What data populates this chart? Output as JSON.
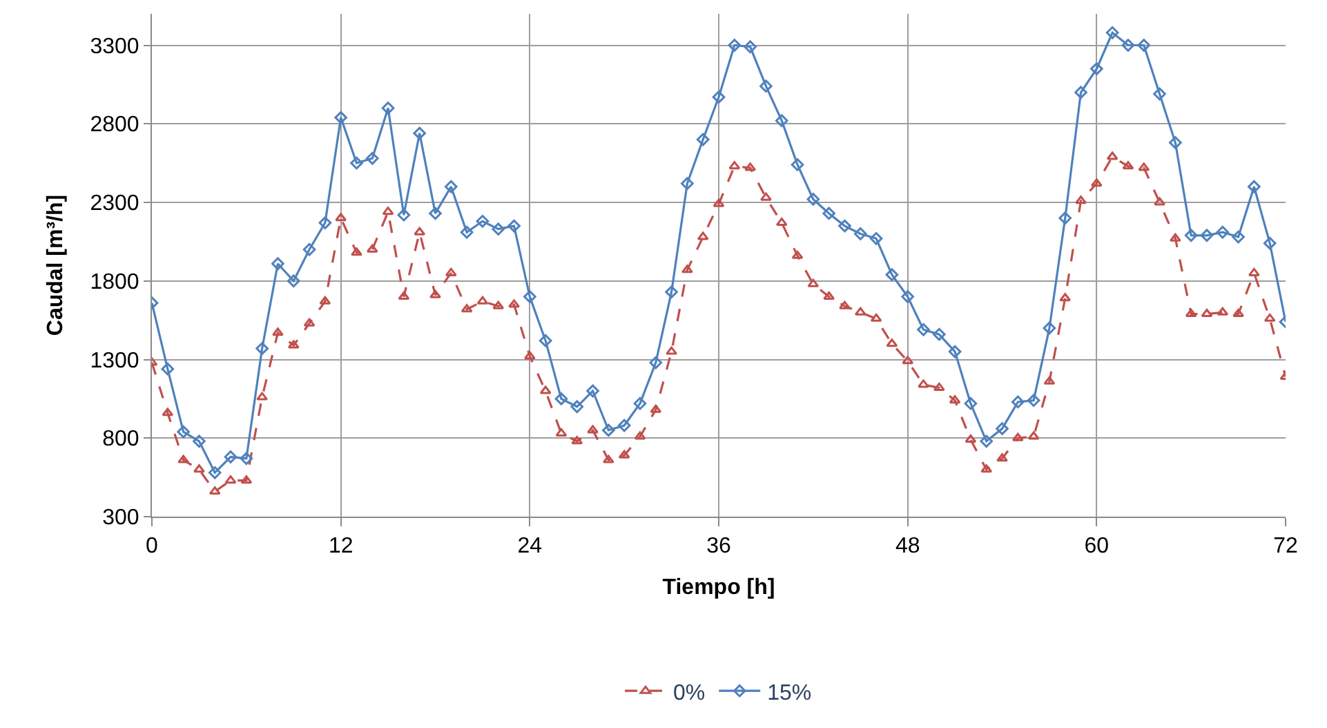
{
  "chart_data": {
    "type": "line",
    "xlabel": "Tiempo [h]",
    "ylabel": "Caudal [m³/h]",
    "x": [
      0,
      1,
      2,
      3,
      4,
      5,
      6,
      7,
      8,
      9,
      10,
      11,
      12,
      13,
      14,
      15,
      16,
      17,
      18,
      19,
      20,
      21,
      22,
      23,
      24,
      25,
      26,
      27,
      28,
      29,
      30,
      31,
      32,
      33,
      34,
      35,
      36,
      37,
      38,
      39,
      40,
      41,
      42,
      43,
      44,
      45,
      46,
      47,
      48,
      49,
      50,
      51,
      52,
      53,
      54,
      55,
      56,
      57,
      58,
      59,
      60,
      61,
      62,
      63,
      64,
      65,
      66,
      67,
      68,
      69,
      70,
      71,
      72
    ],
    "xlim": [
      0,
      72
    ],
    "xticks": [
      0,
      12,
      24,
      36,
      48,
      60,
      72
    ],
    "ylim": [
      300,
      3500
    ],
    "yticks": [
      300,
      800,
      1300,
      1800,
      2300,
      2800,
      3300
    ],
    "grid": true,
    "legend": "bottom",
    "series": [
      {
        "name": "0%",
        "color": "#c0504d",
        "marker": "triangle",
        "line_style": "dashed",
        "values": [
          1280,
          960,
          660,
          600,
          460,
          530,
          530,
          1060,
          1470,
          1390,
          1530,
          1670,
          2200,
          1980,
          2000,
          2240,
          1700,
          2110,
          1710,
          1850,
          1620,
          1670,
          1640,
          1650,
          1320,
          1100,
          830,
          780,
          850,
          660,
          690,
          810,
          980,
          1350,
          1870,
          2080,
          2290,
          2530,
          2520,
          2330,
          2170,
          1960,
          1780,
          1700,
          1640,
          1600,
          1560,
          1400,
          1290,
          1140,
          1120,
          1040,
          790,
          600,
          670,
          800,
          810,
          1160,
          1690,
          2310,
          2420,
          2590,
          2530,
          2520,
          2300,
          2070,
          1590,
          1590,
          1600,
          1590,
          1850,
          1560,
          1190
        ]
      },
      {
        "name": "15%",
        "color": "#4f81bd",
        "marker": "diamond",
        "line_style": "solid",
        "values": [
          1660,
          1240,
          840,
          780,
          580,
          680,
          670,
          1370,
          1910,
          1800,
          2000,
          2170,
          2840,
          2550,
          2580,
          2900,
          2220,
          2740,
          2230,
          2400,
          2110,
          2180,
          2130,
          2150,
          1700,
          1420,
          1050,
          1000,
          1100,
          850,
          880,
          1020,
          1280,
          1730,
          2420,
          2700,
          2970,
          3300,
          3290,
          3040,
          2820,
          2540,
          2320,
          2230,
          2150,
          2100,
          2070,
          1840,
          1700,
          1490,
          1460,
          1350,
          1020,
          780,
          860,
          1030,
          1040,
          1500,
          2200,
          3000,
          3150,
          3380,
          3300,
          3300,
          2990,
          2680,
          2090,
          2090,
          2110,
          2080,
          2400,
          2040,
          1540
        ]
      }
    ]
  }
}
